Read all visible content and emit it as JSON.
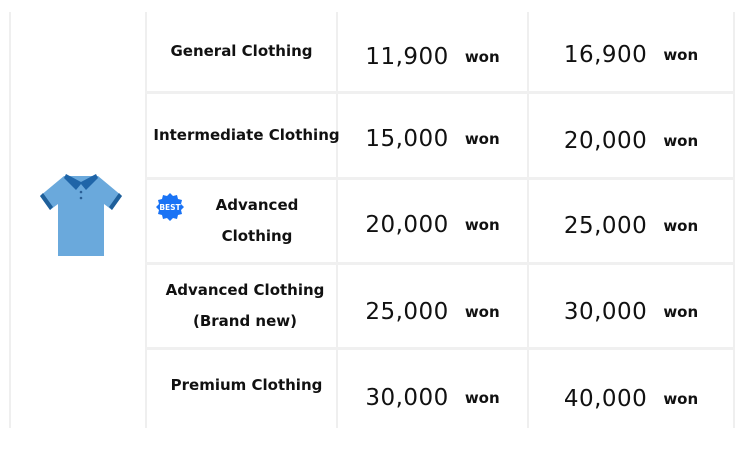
{
  "product_icon": "polo-shirt-icon",
  "best_badge": {
    "label": "BEST",
    "color": "#1a73f5"
  },
  "rows": [
    {
      "name": "General Clothing",
      "price1": "11,900",
      "price2": "16,900",
      "unit": "won"
    },
    {
      "name": "Intermediate Clothing",
      "price1": "15,000",
      "price2": "20,000",
      "unit": "won"
    },
    {
      "name": "Advanced Clothing",
      "price1": "20,000",
      "price2": "25,000",
      "unit": "won",
      "badge": "BEST"
    },
    {
      "name": "Advanced Clothing (Brand new)",
      "price1": "25,000",
      "price2": "30,000",
      "unit": "won"
    },
    {
      "name": "Premium Clothing",
      "price1": "30,000",
      "price2": "40,000",
      "unit": "won"
    }
  ]
}
